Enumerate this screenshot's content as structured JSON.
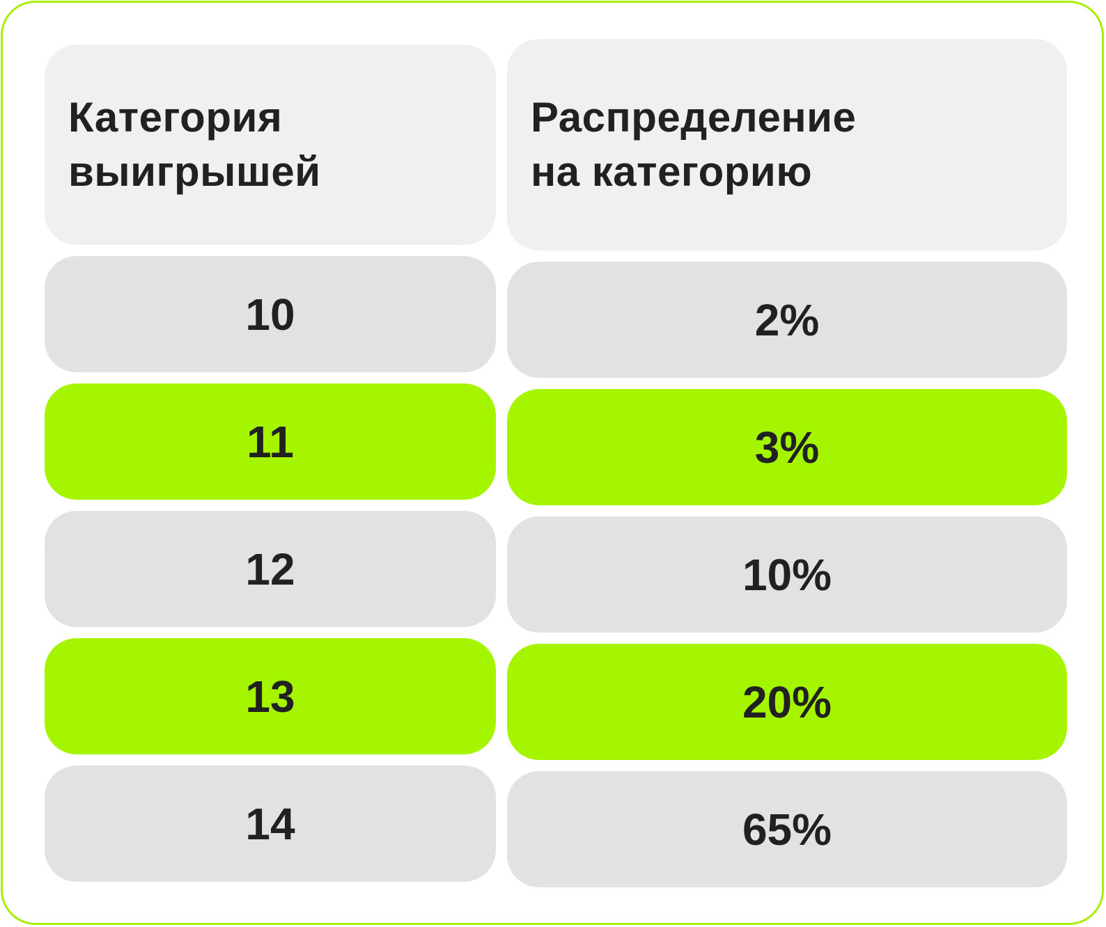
{
  "table": {
    "header": {
      "category_line1": "Категория",
      "category_line2": "выигрышей",
      "distribution_line1": "Распределение",
      "distribution_line2": "на категорию"
    },
    "rows": [
      {
        "category": "10",
        "distribution": "2%",
        "highlight": false
      },
      {
        "category": "11",
        "distribution": "3%",
        "highlight": true
      },
      {
        "category": "12",
        "distribution": "10%",
        "highlight": false
      },
      {
        "category": "13",
        "distribution": "20%",
        "highlight": true
      },
      {
        "category": "14",
        "distribution": "65%",
        "highlight": false
      }
    ]
  },
  "colors": {
    "accent": "#a6f500",
    "border": "#a6ef00",
    "header_bg": "#f0f0f0",
    "row_bg": "#e2e2e2",
    "text": "#212121"
  }
}
